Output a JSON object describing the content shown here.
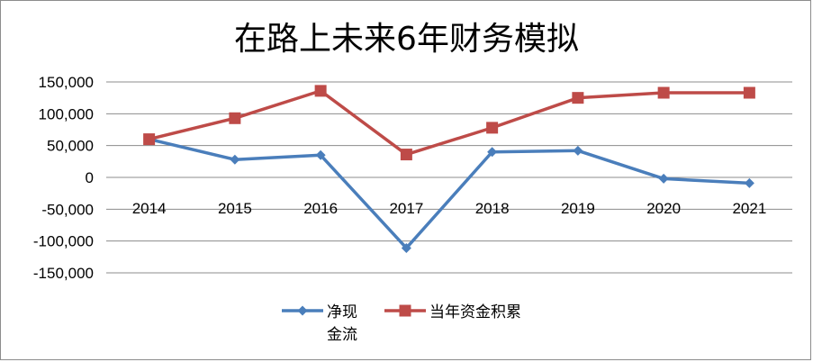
{
  "chart_data": {
    "type": "line",
    "title": "在路上未来6年财务模拟",
    "categories": [
      "2014",
      "2015",
      "2016",
      "2017",
      "2018",
      "2019",
      "2020",
      "2021"
    ],
    "ylim": [
      -150000,
      150000
    ],
    "yticks": [
      150000,
      100000,
      50000,
      0,
      -50000,
      -100000,
      -150000
    ],
    "ytick_labels": [
      "150,000",
      "100,000",
      "50,000",
      "0",
      "-50,000",
      "-100,000",
      "-150,000"
    ],
    "grid": true,
    "legend_position": "bottom",
    "series": [
      {
        "name": "净现金流",
        "legend_lines": [
          "净现",
          "金流"
        ],
        "color": "#4a7ebb",
        "marker": "diamond",
        "values": [
          60000,
          28000,
          35000,
          -111000,
          40000,
          42000,
          -2000,
          -9000
        ]
      },
      {
        "name": "当年资金积累",
        "legend_lines": [
          "当年资金积累"
        ],
        "color": "#be4b48",
        "marker": "square",
        "values": [
          60000,
          93000,
          136000,
          36000,
          78000,
          125000,
          133000,
          133000
        ]
      }
    ]
  }
}
